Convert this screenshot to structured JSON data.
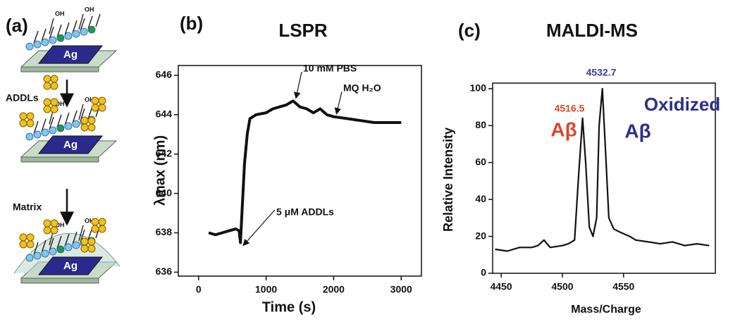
{
  "diagram": {
    "label": "(a)",
    "steps": [
      "ADDLs",
      "Matrix"
    ],
    "substrate": "Ag",
    "group": "OH"
  },
  "chart_data": [
    {
      "type": "line",
      "panel_label": "(b)",
      "title": "LSPR",
      "x_label": "Time (s)",
      "y_label": "λmax (nm)",
      "xlim": [
        -300,
        3300
      ],
      "xticks": [
        0,
        1000,
        2000,
        3000
      ],
      "ylim": [
        635.8,
        646.5
      ],
      "yticks": [
        636,
        638,
        640,
        642,
        644,
        646
      ],
      "series": [
        {
          "color": "#111111",
          "x": [
            150,
            250,
            350,
            450,
            550,
            600,
            620,
            650,
            680,
            720,
            760,
            850,
            1000,
            1100,
            1200,
            1300,
            1400,
            1500,
            1600,
            1700,
            1800,
            1900,
            2000,
            2200,
            2400,
            2600,
            2800,
            3000
          ],
          "values": [
            638.0,
            637.9,
            638.0,
            638.1,
            638.2,
            638.1,
            637.5,
            639.5,
            641.5,
            643.0,
            643.8,
            644.0,
            644.1,
            644.3,
            644.4,
            644.5,
            644.7,
            644.4,
            644.3,
            644.1,
            644.3,
            644.0,
            643.9,
            643.8,
            643.7,
            643.6,
            643.6,
            643.6
          ]
        }
      ],
      "annotations": [
        {
          "text": "10 mM PBS",
          "color": "#111111"
        },
        {
          "text": "MQ H₂O",
          "color": "#111111"
        },
        {
          "text": "5 μM ADDLs",
          "color": "#111111"
        }
      ]
    },
    {
      "type": "line",
      "panel_label": "(c)",
      "title": "MALDI-MS",
      "x_label": "Mass/Charge",
      "y_label": "Relative Intensity",
      "xlim": [
        4443,
        4625
      ],
      "xticks": [
        4450,
        4500,
        4550
      ],
      "ylim": [
        0,
        103
      ],
      "yticks": [
        0,
        20,
        40,
        60,
        80,
        100
      ],
      "series": [
        {
          "color": "#111111",
          "x": [
            4445,
            4455,
            4465,
            4475,
            4480,
            4485,
            4490,
            4500,
            4505,
            4510,
            4513,
            4516.5,
            4519,
            4522,
            4525,
            4528,
            4530,
            4532.7,
            4535,
            4538,
            4542,
            4548,
            4555,
            4560,
            4570,
            4580,
            4590,
            4600,
            4610,
            4620
          ],
          "values": [
            13,
            12,
            14,
            14,
            15,
            18,
            14,
            15,
            16,
            18,
            50,
            84,
            60,
            25,
            20,
            30,
            80,
            100,
            70,
            30,
            24,
            22,
            20,
            18,
            17,
            16,
            17,
            15,
            16,
            15
          ]
        }
      ],
      "annotations": [
        {
          "text": "4516.5",
          "color": "#d9472b"
        },
        {
          "text": "4532.7",
          "color": "#3a3f96"
        },
        {
          "text": "Aβ",
          "color": "#d9472b"
        },
        {
          "text": "Oxidized",
          "color": "#2b2f8a"
        },
        {
          "text": "Aβ",
          "color": "#2b2f8a"
        }
      ]
    }
  ]
}
